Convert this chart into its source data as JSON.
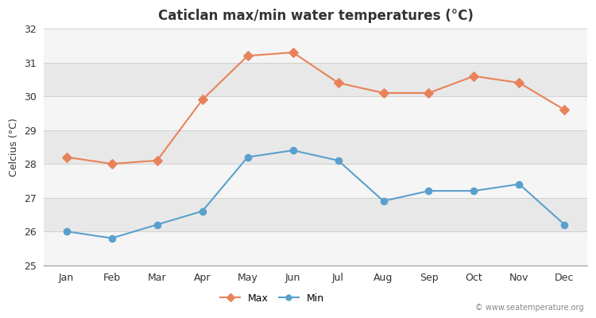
{
  "months": [
    "Jan",
    "Feb",
    "Mar",
    "Apr",
    "May",
    "Jun",
    "Jul",
    "Aug",
    "Sep",
    "Oct",
    "Nov",
    "Dec"
  ],
  "max_temps": [
    28.2,
    28.0,
    28.1,
    29.9,
    31.2,
    31.3,
    30.4,
    30.1,
    30.1,
    30.6,
    30.4,
    29.6
  ],
  "min_temps": [
    26.0,
    25.8,
    26.2,
    26.6,
    28.2,
    28.4,
    28.1,
    26.9,
    27.2,
    27.2,
    27.4,
    26.2
  ],
  "max_color": "#e8825a",
  "min_color": "#5aa0cc",
  "title": "Caticlan max/min water temperatures (°C)",
  "ylabel": "Celcius (°C)",
  "ylim": [
    25,
    32
  ],
  "yticks": [
    25,
    26,
    27,
    28,
    29,
    30,
    31,
    32
  ],
  "stripe_light": "#f0f0f0",
  "stripe_dark": "#e0e0e0",
  "fig_bg": "#ffffff",
  "bottom_border_color": "#aaaaaa",
  "watermark": "© www.seatemperature.org",
  "legend_max": "Max",
  "legend_min": "Min"
}
